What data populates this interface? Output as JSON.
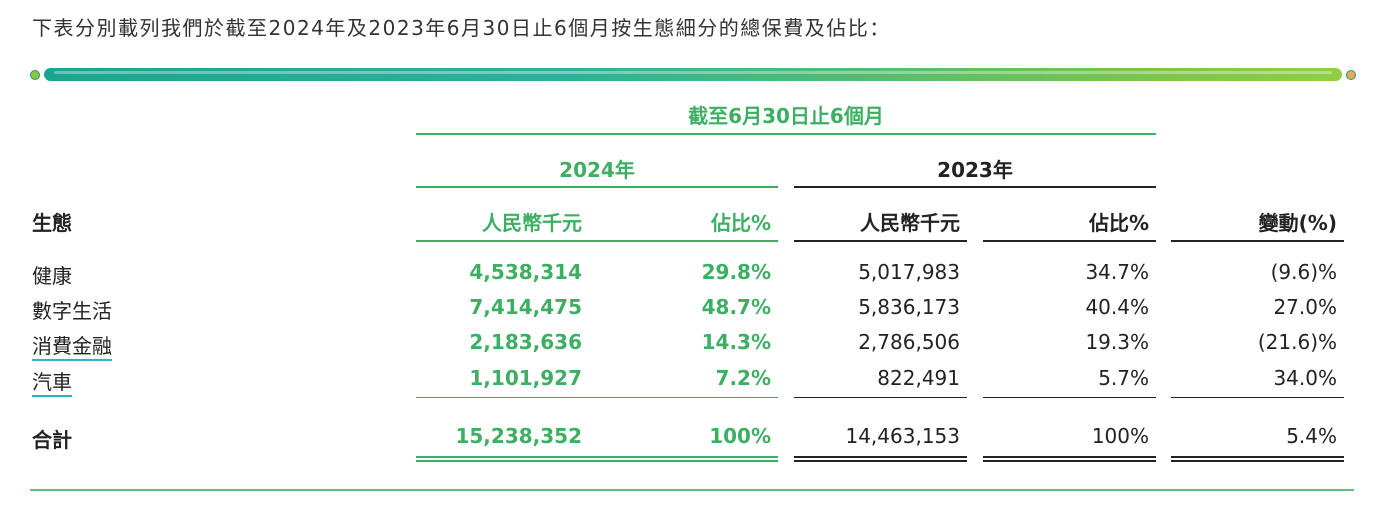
{
  "intro": "下表分別載列我們於截至2024年及2023年6月30日止6個月按生態細分的總保費及佔比：",
  "header": {
    "period": "截至6月30日止6個月",
    "year_2024": "2024年",
    "year_2023": "2023年",
    "row_label": "生態",
    "col_rmb_2024": "人民幣千元",
    "col_pct_2024": "佔比%",
    "col_rmb_2023": "人民幣千元",
    "col_pct_2023": "佔比%",
    "col_change": "變動(%)"
  },
  "rows": [
    {
      "name": "健康",
      "rmb_2024": "4,538,314",
      "pct_2024": "29.8%",
      "rmb_2023": "5,017,983",
      "pct_2023": "34.7%",
      "change": "(9.6)%"
    },
    {
      "name": "數字生活",
      "rmb_2024": "7,414,475",
      "pct_2024": "48.7%",
      "rmb_2023": "5,836,173",
      "pct_2023": "40.4%",
      "change": "27.0%"
    },
    {
      "name": "消費金融",
      "rmb_2024": "2,183,636",
      "pct_2024": "14.3%",
      "rmb_2023": "2,786,506",
      "pct_2023": "19.3%",
      "change": "(21.6)%"
    },
    {
      "name": "汽車",
      "rmb_2024": "1,101,927",
      "pct_2024": "7.2%",
      "rmb_2023": "822,491",
      "pct_2023": "5.7%",
      "change": "34.0%"
    }
  ],
  "total": {
    "name": "合計",
    "rmb_2024": "15,238,352",
    "pct_2024": "100%",
    "rmb_2023": "14,463,153",
    "pct_2023": "100%",
    "change": "5.4%"
  },
  "colors": {
    "accent_green": "#3daf62",
    "bar_start": "#1aa590",
    "bar_end": "#8fcf45",
    "link_underline": "#27b3c9"
  }
}
